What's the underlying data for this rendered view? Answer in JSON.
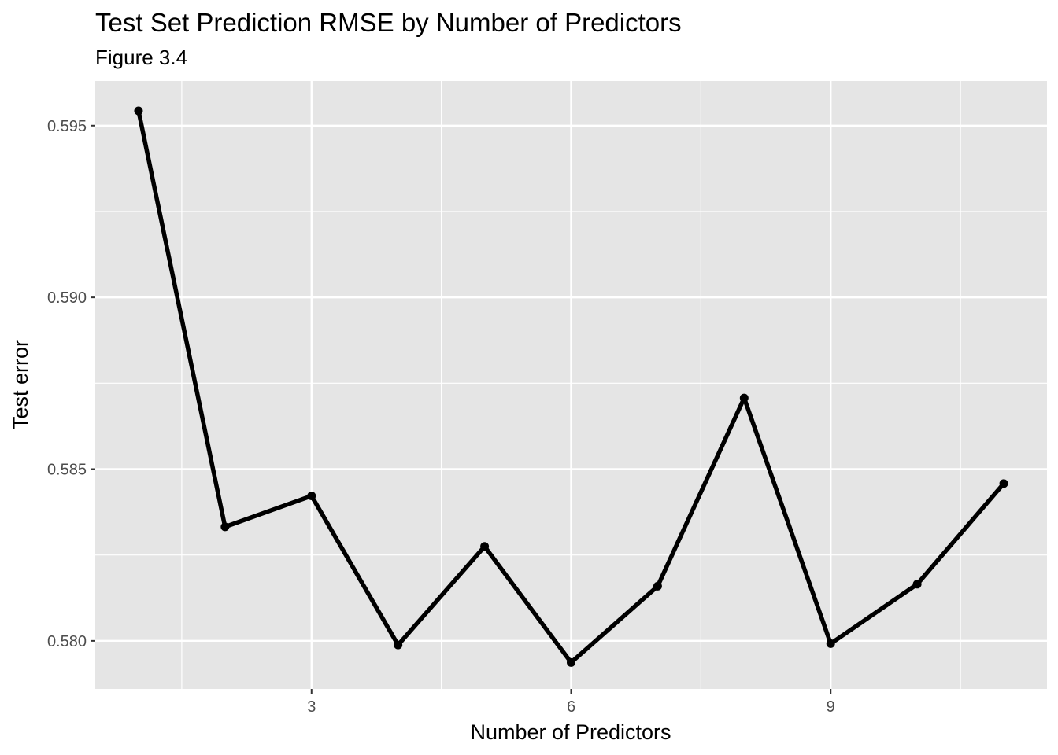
{
  "chart_data": {
    "type": "line",
    "title": "Test Set Prediction RMSE by Number of Predictors",
    "subtitle": "Figure 3.4",
    "xlabel": "Number of Predictors",
    "ylabel": "Test error",
    "x": [
      1,
      2,
      3,
      4,
      5,
      6,
      7,
      8,
      9,
      10,
      11
    ],
    "series": [
      {
        "values": [
          0.59543,
          0.58332,
          0.58422,
          0.57988,
          0.58275,
          0.57937,
          0.58159,
          0.58707,
          0.57992,
          0.58165,
          0.58458
        ]
      }
    ],
    "xlim": [
      0.5,
      11.5
    ],
    "ylim": [
      0.5786,
      0.5963
    ],
    "x_ticks": [
      3,
      6,
      9
    ],
    "x_tick_labels": [
      "3",
      "6",
      "9"
    ],
    "y_ticks": [
      0.58,
      0.585,
      0.59,
      0.595
    ],
    "y_tick_labels": [
      "0.580",
      "0.585",
      "0.590",
      "0.595"
    ],
    "grid": true,
    "legend": "none",
    "colors": {
      "panel_background": "#e5e5e5",
      "grid_line": "#ffffff",
      "series_line": "#000000",
      "tick_label": "#4d4d4d",
      "tick_mark": "#333333"
    }
  }
}
